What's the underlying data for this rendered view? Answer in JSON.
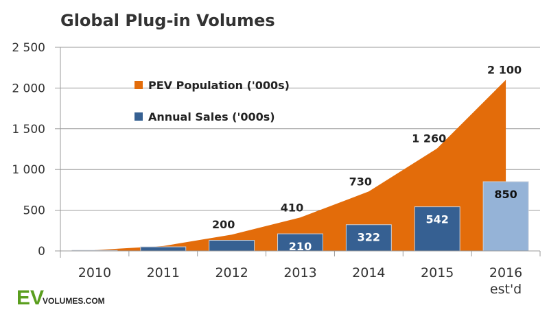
{
  "chart_data": {
    "type": "bar+area",
    "title": "Global Plug-in Volumes",
    "categories": [
      "2010",
      "2011",
      "2012",
      "2013",
      "2014",
      "2015",
      "2016"
    ],
    "category_sublabels": [
      "",
      "",
      "",
      "",
      "",
      "",
      "est'd"
    ],
    "ylim": [
      0,
      2500
    ],
    "yticks": [
      0,
      500,
      1000,
      1500,
      2000,
      2500
    ],
    "ytick_labels": [
      "0",
      "500",
      "1 000",
      "1 500",
      "2 000",
      "2 500"
    ],
    "grid": true,
    "legend_placement": "top-left",
    "series": [
      {
        "name": "PEV Population ('000s)",
        "type": "area",
        "color": "#E36C0A",
        "values": [
          10,
          60,
          200,
          410,
          730,
          1260,
          2100
        ],
        "labels": [
          "",
          "",
          "200",
          "410",
          "730",
          "1 260",
          "2 100"
        ]
      },
      {
        "name": "Annual Sales ('000s)",
        "type": "bar",
        "color": "#366092",
        "estimate_color": "#95B3D7",
        "values": [
          7,
          50,
          130,
          210,
          322,
          542,
          850
        ],
        "labels": [
          "",
          "",
          "",
          "210",
          "322",
          "542",
          "850"
        ]
      }
    ]
  },
  "logo": {
    "ev": "EV",
    "rest": "VOLUMES.COM",
    "color": "#5A9E1E"
  }
}
